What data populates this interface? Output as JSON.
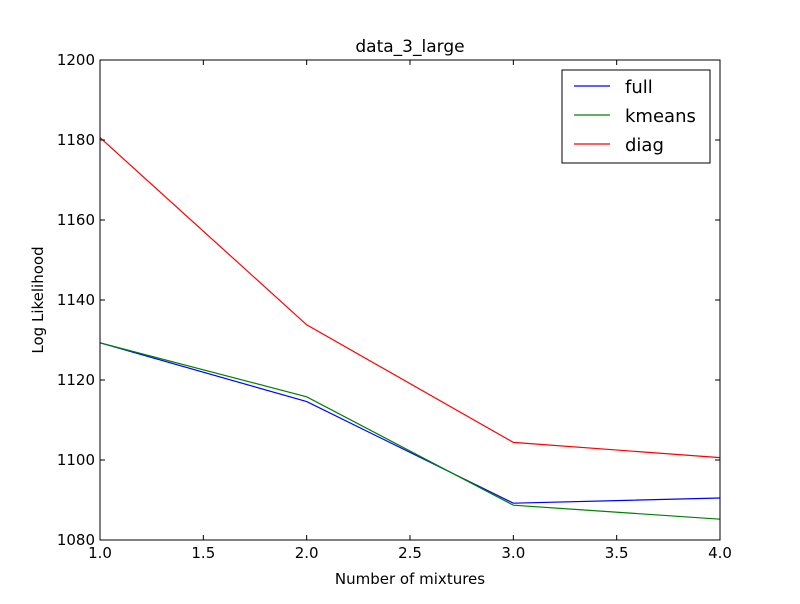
{
  "chart_data": {
    "type": "line",
    "title": "data_3_large",
    "xlabel": "Number of mixtures",
    "ylabel": "Log Likelihood",
    "xlim": [
      1.0,
      4.0
    ],
    "ylim": [
      1080,
      1200
    ],
    "xticks": [
      1.0,
      1.5,
      2.0,
      2.5,
      3.0,
      3.5,
      4.0
    ],
    "xtick_labels": [
      "1.0",
      "1.5",
      "2.0",
      "2.5",
      "3.0",
      "3.5",
      "4.0"
    ],
    "yticks": [
      1080,
      1100,
      1120,
      1140,
      1160,
      1180,
      1200
    ],
    "ytick_labels": [
      "1080",
      "1100",
      "1120",
      "1140",
      "1160",
      "1180",
      "1200"
    ],
    "grid": false,
    "legend_position": "top-right",
    "x": [
      1,
      2,
      3,
      4
    ],
    "series": [
      {
        "name": "full",
        "color": "#0000ff",
        "values": [
          1129.3,
          1114.6,
          1089.2,
          1090.5
        ]
      },
      {
        "name": "kmeans",
        "color": "#008000",
        "values": [
          1129.3,
          1115.8,
          1088.7,
          1085.2
        ]
      },
      {
        "name": "diag",
        "color": "#ff0000",
        "values": [
          1180.6,
          1133.8,
          1104.4,
          1100.6
        ]
      }
    ]
  }
}
